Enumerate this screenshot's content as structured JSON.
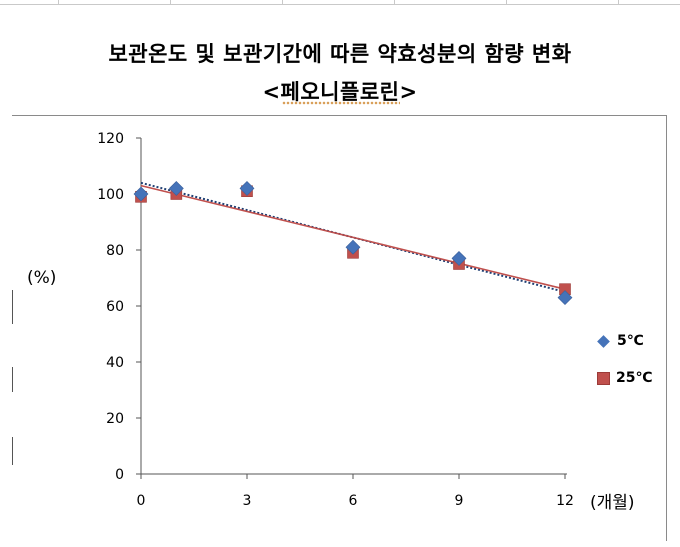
{
  "title": "보관온도 및 보관기간에 따른 약효성분의 함량 변화",
  "subtitle": "<페오니플로린>",
  "chart_data": {
    "type": "scatter",
    "title": "보관온도 및 보관기간에 따른 약효성분의 함량 변화",
    "subtitle": "<페오니플로린>",
    "ylabel": "(%)",
    "xlabel": "(개월)",
    "x_ticks": [
      0,
      3,
      6,
      9,
      12
    ],
    "y_ticks": [
      0,
      20,
      40,
      60,
      80,
      100,
      120
    ],
    "xlim": [
      0,
      12
    ],
    "ylim": [
      0,
      120
    ],
    "grid": false,
    "legend_position": "right",
    "series": [
      {
        "name": "5℃",
        "marker": "diamond",
        "color": "#4573b9",
        "x": [
          0,
          1,
          3,
          6,
          9,
          12
        ],
        "y": [
          100,
          102,
          102,
          81,
          77,
          63
        ],
        "trendline": {
          "x": [
            0,
            12
          ],
          "y": [
            104,
            65
          ],
          "color": "#1f3f73",
          "style": "dotted"
        }
      },
      {
        "name": "25℃",
        "marker": "square",
        "color": "#c0504d",
        "x": [
          0,
          1,
          3,
          6,
          9,
          12
        ],
        "y": [
          99,
          100,
          101,
          79,
          75,
          66
        ],
        "trendline": {
          "x": [
            0,
            12
          ],
          "y": [
            103,
            66
          ],
          "color": "#c0504d",
          "style": "solid"
        }
      }
    ]
  }
}
